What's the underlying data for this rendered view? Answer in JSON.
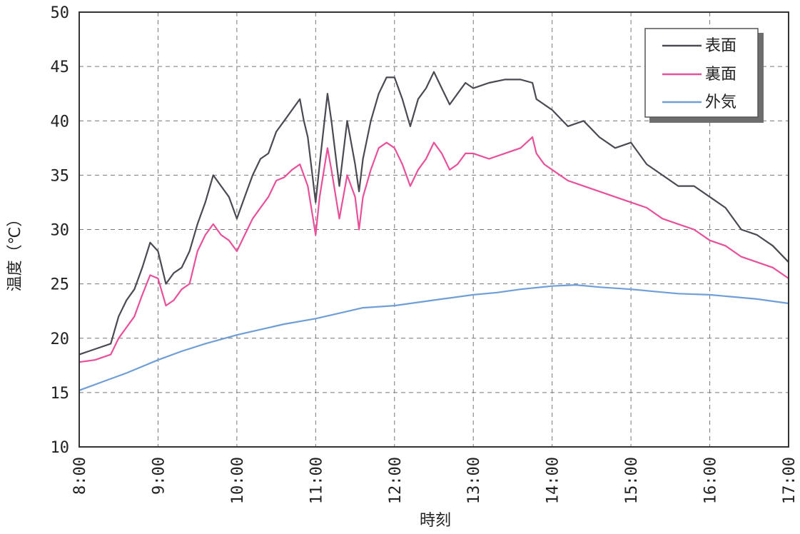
{
  "chart_data": {
    "type": "line",
    "xlabel": "時刻",
    "ylabel": "温度（℃）",
    "xlim": [
      8,
      17
    ],
    "ylim": [
      10,
      50
    ],
    "x_ticks": [
      "8:00",
      "9:00",
      "10:00",
      "11:00",
      "12:00",
      "13:00",
      "14:00",
      "15:00",
      "16:00",
      "17:00"
    ],
    "y_ticks": [
      10,
      15,
      20,
      25,
      30,
      35,
      40,
      45,
      50
    ],
    "grid": true,
    "legend_position": "top-right",
    "series": [
      {
        "name": "表面",
        "color": "#4a4a52",
        "x": [
          8.0,
          8.2,
          8.4,
          8.5,
          8.6,
          8.7,
          8.8,
          8.9,
          9.0,
          9.1,
          9.2,
          9.3,
          9.4,
          9.5,
          9.6,
          9.7,
          9.8,
          9.9,
          10.0,
          10.1,
          10.2,
          10.3,
          10.4,
          10.5,
          10.6,
          10.7,
          10.8,
          10.85,
          10.9,
          11.0,
          11.05,
          11.15,
          11.2,
          11.3,
          11.4,
          11.5,
          11.55,
          11.6,
          11.7,
          11.8,
          11.9,
          12.0,
          12.1,
          12.2,
          12.3,
          12.4,
          12.5,
          12.6,
          12.7,
          12.8,
          12.9,
          13.0,
          13.2,
          13.4,
          13.6,
          13.75,
          13.8,
          13.9,
          14.0,
          14.2,
          14.4,
          14.6,
          14.8,
          15.0,
          15.2,
          15.4,
          15.6,
          15.8,
          16.0,
          16.2,
          16.4,
          16.6,
          16.8,
          17.0
        ],
        "y": [
          18.5,
          19.0,
          19.5,
          22.0,
          23.5,
          24.5,
          26.5,
          28.8,
          28.0,
          25.0,
          26.0,
          26.5,
          28.0,
          30.5,
          32.5,
          35.0,
          34.0,
          33.0,
          31.0,
          33.0,
          35.0,
          36.5,
          37.0,
          39.0,
          40.0,
          41.0,
          42.0,
          40.0,
          38.5,
          32.5,
          36.0,
          42.5,
          40.0,
          34.0,
          40.0,
          36.0,
          33.5,
          36.5,
          40.0,
          42.5,
          44.0,
          44.0,
          42.0,
          39.5,
          42.0,
          43.0,
          44.5,
          43.0,
          41.5,
          42.5,
          43.5,
          43.0,
          43.5,
          43.8,
          43.8,
          43.5,
          42.0,
          41.5,
          41.0,
          39.5,
          40.0,
          38.5,
          37.5,
          38.0,
          36.0,
          35.0,
          34.0,
          34.0,
          33.0,
          32.0,
          30.0,
          29.5,
          28.5,
          27.0
        ]
      },
      {
        "name": "裏面",
        "color": "#e8509a",
        "x": [
          8.0,
          8.2,
          8.4,
          8.5,
          8.6,
          8.7,
          8.8,
          8.9,
          9.0,
          9.1,
          9.2,
          9.3,
          9.4,
          9.5,
          9.6,
          9.7,
          9.8,
          9.9,
          10.0,
          10.1,
          10.2,
          10.3,
          10.4,
          10.5,
          10.6,
          10.7,
          10.8,
          10.85,
          10.9,
          11.0,
          11.05,
          11.15,
          11.2,
          11.3,
          11.4,
          11.5,
          11.55,
          11.6,
          11.7,
          11.8,
          11.9,
          12.0,
          12.1,
          12.2,
          12.3,
          12.4,
          12.5,
          12.6,
          12.7,
          12.8,
          12.9,
          13.0,
          13.2,
          13.4,
          13.6,
          13.75,
          13.8,
          13.9,
          14.0,
          14.2,
          14.4,
          14.6,
          14.8,
          15.0,
          15.2,
          15.4,
          15.6,
          15.8,
          16.0,
          16.2,
          16.4,
          16.6,
          16.8,
          17.0
        ],
        "y": [
          17.8,
          18.0,
          18.5,
          20.0,
          21.0,
          22.0,
          24.0,
          25.8,
          25.5,
          23.0,
          23.5,
          24.5,
          25.0,
          28.0,
          29.5,
          30.5,
          29.5,
          29.0,
          28.0,
          29.5,
          31.0,
          32.0,
          33.0,
          34.5,
          34.8,
          35.5,
          36.0,
          35.0,
          34.0,
          29.5,
          33.0,
          37.5,
          35.5,
          31.0,
          35.0,
          33.0,
          30.0,
          33.0,
          35.5,
          37.5,
          38.0,
          37.5,
          36.0,
          34.0,
          35.5,
          36.5,
          38.0,
          37.0,
          35.5,
          36.0,
          37.0,
          37.0,
          36.5,
          37.0,
          37.5,
          38.5,
          37.0,
          36.0,
          35.5,
          34.5,
          34.0,
          33.5,
          33.0,
          32.5,
          32.0,
          31.0,
          30.5,
          30.0,
          29.0,
          28.5,
          27.5,
          27.0,
          26.5,
          25.5
        ]
      },
      {
        "name": "外気",
        "color": "#6f9fd6",
        "x": [
          8.0,
          8.3,
          8.6,
          9.0,
          9.3,
          9.6,
          10.0,
          10.3,
          10.6,
          11.0,
          11.3,
          11.6,
          12.0,
          12.3,
          12.6,
          13.0,
          13.3,
          13.6,
          14.0,
          14.3,
          14.6,
          15.0,
          15.3,
          15.6,
          16.0,
          16.3,
          16.6,
          17.0
        ],
        "y": [
          15.2,
          16.0,
          16.8,
          18.0,
          18.8,
          19.5,
          20.3,
          20.8,
          21.3,
          21.8,
          22.3,
          22.8,
          23.0,
          23.3,
          23.6,
          24.0,
          24.2,
          24.5,
          24.8,
          24.9,
          24.7,
          24.5,
          24.3,
          24.1,
          24.0,
          23.8,
          23.6,
          23.2
        ]
      }
    ]
  }
}
